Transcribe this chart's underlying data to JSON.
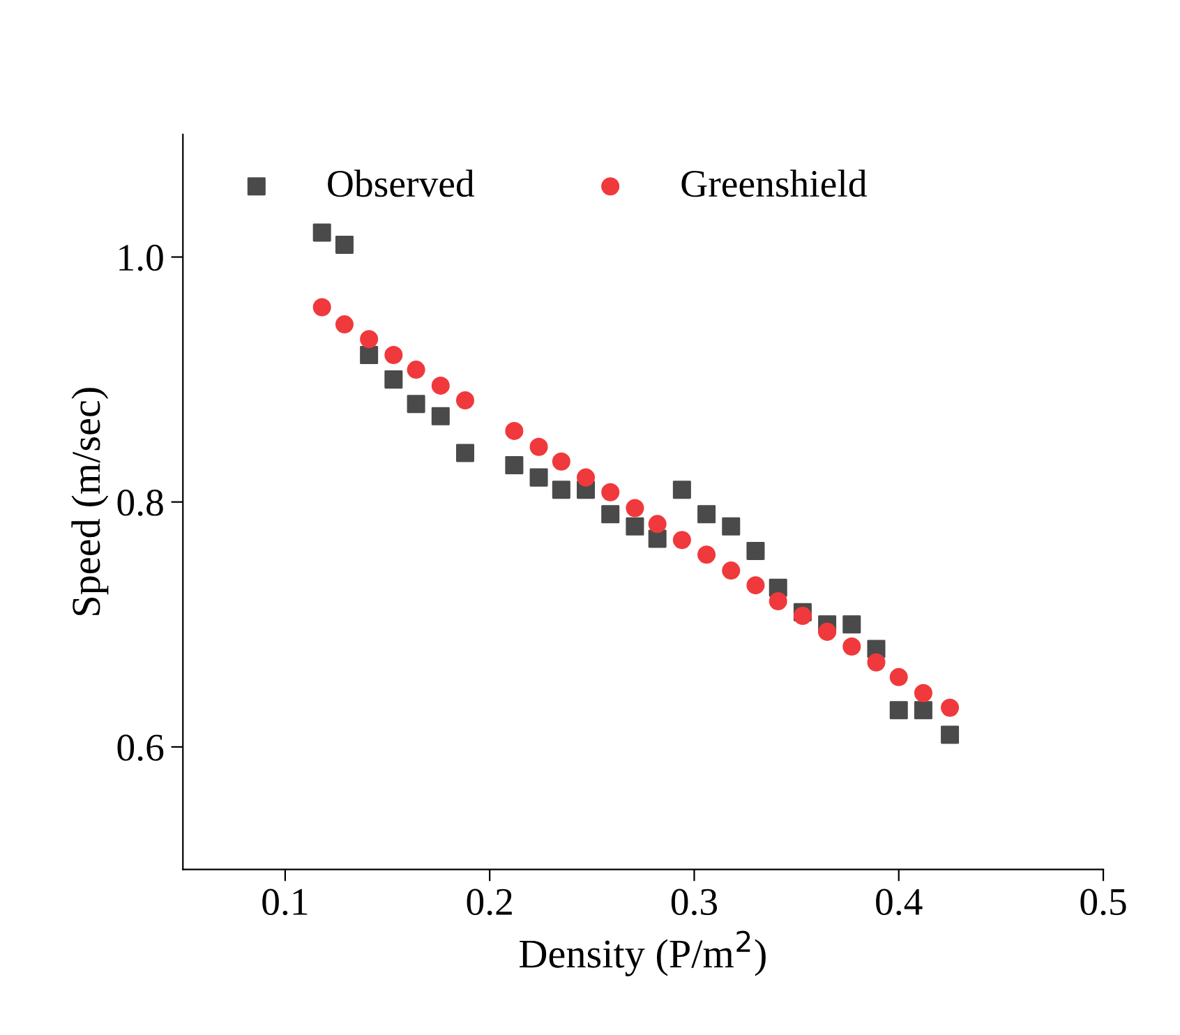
{
  "chart_data": {
    "type": "scatter",
    "xlabel": "Density (P/m$^{2}$)",
    "ylabel": "Speed (m/sec)",
    "xlim": [
      0.05,
      0.5
    ],
    "ylim": [
      0.5,
      1.1
    ],
    "xticks": [
      0.1,
      0.2,
      0.3,
      0.4,
      0.5
    ],
    "yticks": [
      0.6,
      0.8,
      {
        "value": 1,
        "label": "1.0"
      }
    ],
    "grid": false,
    "legend": "top left",
    "series": [
      {
        "name": "Observed",
        "color": "#4a4a4a",
        "marker": "square",
        "x": [
          0.118,
          0.129,
          0.141,
          0.153,
          0.164,
          0.176,
          0.188,
          0.212,
          0.224,
          0.235,
          0.247,
          0.259,
          0.271,
          0.282,
          0.294,
          0.306,
          0.318,
          0.33,
          0.341,
          0.353,
          0.365,
          0.377,
          0.389,
          0.4,
          0.412,
          0.425
        ],
        "values": [
          1.02,
          1.01,
          0.92,
          0.9,
          0.88,
          0.87,
          0.84,
          0.83,
          0.82,
          0.81,
          0.81,
          0.79,
          0.78,
          0.77,
          0.81,
          0.79,
          0.78,
          0.76,
          0.73,
          0.71,
          0.7,
          0.7,
          0.68,
          0.63,
          0.63,
          0.61
        ]
      },
      {
        "name": "Greenshield",
        "color": "#f0393c",
        "marker": "circle",
        "x": [
          0.118,
          0.129,
          0.141,
          0.153,
          0.164,
          0.176,
          0.188,
          0.212,
          0.224,
          0.235,
          0.247,
          0.259,
          0.271,
          0.282,
          0.294,
          0.306,
          0.318,
          0.33,
          0.341,
          0.353,
          0.365,
          0.377,
          0.389,
          0.4,
          0.412,
          0.425
        ],
        "values": [
          0.959,
          0.945,
          0.933,
          0.92,
          0.908,
          0.895,
          0.883,
          0.858,
          0.845,
          0.833,
          0.82,
          0.808,
          0.795,
          0.782,
          0.769,
          0.757,
          0.744,
          0.732,
          0.719,
          0.707,
          0.694,
          0.682,
          0.669,
          0.657,
          0.644,
          0.632
        ]
      }
    ]
  }
}
